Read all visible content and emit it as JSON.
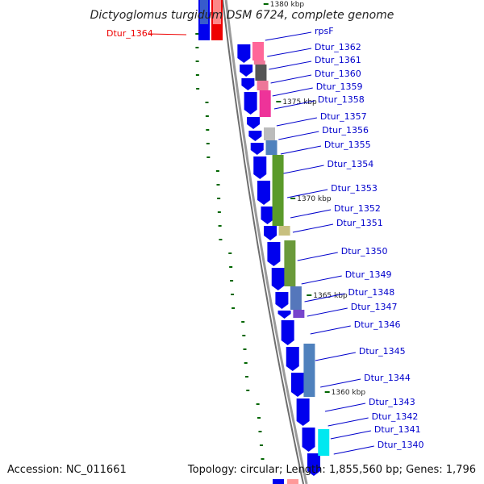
{
  "title": "Dictyoglomus turgidum DSM 6724, complete genome",
  "footer": {
    "accession": "Accession: NC_011661",
    "topology": "Topology: circular; Length: 1,855,560 bp; Genes: 1,796"
  },
  "colors": {
    "forward_strand": "#0000ee",
    "highlight": "#ee0000",
    "label_link": "#0000cc",
    "gc_skew": "#006600",
    "backbone": "#808080"
  },
  "kbp_ticks": [
    {
      "label": "1380 kbp",
      "kbp": 1380
    },
    {
      "label": "1375 kbp",
      "kbp": 1375
    },
    {
      "label": "1370 kbp",
      "kbp": 1370
    },
    {
      "label": "1365 kbp",
      "kbp": 1365
    },
    {
      "label": "1360 kbp",
      "kbp": 1360
    }
  ],
  "gene_labels": [
    {
      "label": "Dtur_1364",
      "side": "left",
      "highlight": true
    },
    {
      "label": "rpsF",
      "side": "right"
    },
    {
      "label": "Dtur_1362",
      "side": "right"
    },
    {
      "label": "Dtur_1361",
      "side": "right"
    },
    {
      "label": "Dtur_1360",
      "side": "right"
    },
    {
      "label": "Dtur_1359",
      "side": "right"
    },
    {
      "label": "Dtur_1358",
      "side": "right"
    },
    {
      "label": "Dtur_1357",
      "side": "right"
    },
    {
      "label": "Dtur_1356",
      "side": "right"
    },
    {
      "label": "Dtur_1355",
      "side": "right"
    },
    {
      "label": "Dtur_1354",
      "side": "right"
    },
    {
      "label": "Dtur_1353",
      "side": "right"
    },
    {
      "label": "Dtur_1352",
      "side": "right"
    },
    {
      "label": "Dtur_1351",
      "side": "right"
    },
    {
      "label": "Dtur_1350",
      "side": "right"
    },
    {
      "label": "Dtur_1349",
      "side": "right"
    },
    {
      "label": "Dtur_1348",
      "side": "right"
    },
    {
      "label": "Dtur_1347",
      "side": "right"
    },
    {
      "label": "Dtur_1346",
      "side": "right"
    },
    {
      "label": "Dtur_1345",
      "side": "right"
    },
    {
      "label": "Dtur_1344",
      "side": "right"
    },
    {
      "label": "Dtur_1343",
      "side": "right"
    },
    {
      "label": "Dtur_1342",
      "side": "right"
    },
    {
      "label": "Dtur_1341",
      "side": "right"
    },
    {
      "label": "Dtur_1340",
      "side": "right"
    }
  ],
  "cog_colors": [
    "#4f81bd",
    "#ff6699",
    "#555555",
    "#ee7799",
    "#ee3399",
    "#bbbbbb",
    "#5a9a2a",
    "#c8c080",
    "#6a9a3a",
    "#5577bb",
    "#7744cc",
    "#00e8f0"
  ]
}
